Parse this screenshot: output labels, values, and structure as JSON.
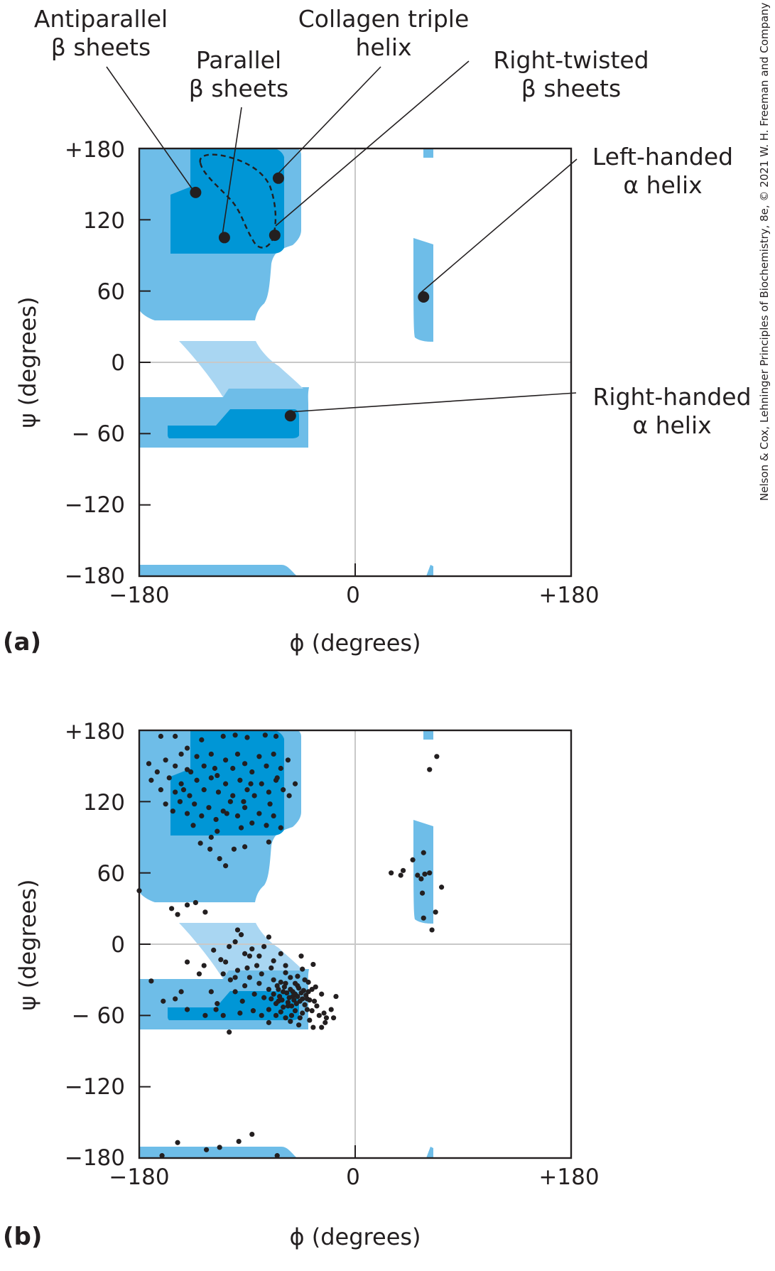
{
  "credit": "Nelson & Cox, Lehninger Principles of Biochemistry, 8e, © 2021 W. H. Freeman and Company",
  "colors": {
    "allowed": "#6ebde8",
    "favorable": "#0096d6",
    "bridge": "#a9d6f2",
    "frame": "#231f20",
    "gridline": "#c8c8c8",
    "point": "#231f20"
  },
  "chart_data": [
    {
      "panel": "(a)",
      "type": "scatter",
      "xlabel": "ϕ (degrees)",
      "ylabel": "ψ (degrees)",
      "xlim": [
        -180,
        180
      ],
      "ylim": [
        -180,
        180
      ],
      "x_ticks": [
        "−180",
        "0",
        "+180"
      ],
      "y_ticks": [
        "+180",
        "120",
        "60",
        "0",
        "− 60",
        "−120",
        "−180"
      ],
      "annotations": [
        {
          "label_lines": [
            "Antiparallel",
            "β sheets"
          ],
          "phi": -133,
          "psi": 143
        },
        {
          "label_lines": [
            "Parallel",
            "β sheets"
          ],
          "phi": -109,
          "psi": 105
        },
        {
          "label_lines": [
            "Collagen triple",
            "helix"
          ],
          "phi": -64,
          "psi": 155
        },
        {
          "label_lines": [
            "Right-twisted",
            "β sheets"
          ],
          "phi": -67,
          "psi": 107
        },
        {
          "label_lines": [
            "Left-handed",
            "α helix"
          ],
          "phi": 57,
          "psi": 55
        },
        {
          "label_lines": [
            "Right-handed",
            "α helix"
          ],
          "phi": -54,
          "psi": -45
        }
      ]
    },
    {
      "panel": "(b)",
      "type": "scatter",
      "xlabel": "ϕ (degrees)",
      "ylabel": "ψ (degrees)",
      "xlim": [
        -180,
        180
      ],
      "ylim": [
        -180,
        180
      ],
      "x_ticks": [
        "−180",
        "0",
        "+180"
      ],
      "y_ticks": [
        "+180",
        "120",
        "60",
        "0",
        "− 60",
        "−120",
        "−180"
      ],
      "points": [
        [
          -162,
          175
        ],
        [
          -150,
          175
        ],
        [
          -140,
          165
        ],
        [
          -128,
          172
        ],
        [
          -110,
          175
        ],
        [
          -100,
          176
        ],
        [
          -90,
          174
        ],
        [
          -75,
          176
        ],
        [
          -66,
          175
        ],
        [
          -172,
          152
        ],
        [
          -165,
          145
        ],
        [
          -158,
          155
        ],
        [
          -150,
          150
        ],
        [
          -145,
          160
        ],
        [
          -140,
          147
        ],
        [
          -132,
          158
        ],
        [
          -126,
          150
        ],
        [
          -120,
          160
        ],
        [
          -115,
          142
        ],
        [
          -108,
          155
        ],
        [
          -102,
          148
        ],
        [
          -98,
          160
        ],
        [
          -92,
          152
        ],
        [
          -86,
          145
        ],
        [
          -80,
          158
        ],
        [
          -74,
          150
        ],
        [
          -68,
          160
        ],
        [
          -62,
          148
        ],
        [
          -56,
          155
        ],
        [
          -170,
          138
        ],
        [
          -162,
          130
        ],
        [
          -155,
          140
        ],
        [
          -150,
          128
        ],
        [
          -145,
          135
        ],
        [
          -138,
          125
        ],
        [
          -132,
          138
        ],
        [
          -126,
          130
        ],
        [
          -120,
          140
        ],
        [
          -114,
          128
        ],
        [
          -108,
          135
        ],
        [
          -102,
          125
        ],
        [
          -96,
          138
        ],
        [
          -90,
          130
        ],
        [
          -84,
          125
        ],
        [
          -78,
          135
        ],
        [
          -72,
          128
        ],
        [
          -66,
          138
        ],
        [
          -60,
          130
        ],
        [
          -55,
          125
        ],
        [
          -65,
          140
        ],
        [
          -158,
          118
        ],
        [
          -152,
          112
        ],
        [
          -146,
          120
        ],
        [
          -140,
          110
        ],
        [
          -134,
          118
        ],
        [
          -128,
          108
        ],
        [
          -122,
          115
        ],
        [
          -116,
          105
        ],
        [
          -110,
          112
        ],
        [
          -104,
          120
        ],
        [
          -98,
          108
        ],
        [
          -92,
          115
        ],
        [
          -86,
          102
        ],
        [
          -80,
          110
        ],
        [
          -74,
          100
        ],
        [
          -68,
          108
        ],
        [
          -62,
          98
        ],
        [
          -50,
          135
        ],
        [
          -135,
          100
        ],
        [
          -115,
          95
        ],
        [
          -95,
          98
        ],
        [
          -120,
          90
        ],
        [
          -107,
          110
        ],
        [
          -143,
          130
        ],
        [
          -137,
          145
        ],
        [
          -117,
          148
        ],
        [
          -93,
          120
        ],
        [
          -87,
          135
        ],
        [
          -71,
          118
        ],
        [
          -129,
          85
        ],
        [
          -121,
          80
        ],
        [
          -113,
          72
        ],
        [
          -108,
          66
        ],
        [
          -101,
          80
        ],
        [
          -92,
          82
        ],
        [
          -72,
          86
        ],
        [
          -180,
          45
        ],
        [
          -153,
          30
        ],
        [
          -148,
          25
        ],
        [
          -140,
          33
        ],
        [
          -133,
          35
        ],
        [
          -125,
          27
        ],
        [
          -150,
          -46
        ],
        [
          -160,
          -48
        ],
        [
          -170,
          -31
        ],
        [
          -145,
          -40
        ],
        [
          -140,
          -55
        ],
        [
          -125,
          -60
        ],
        [
          -115,
          -50
        ],
        [
          -105,
          -74
        ],
        [
          -140,
          -15
        ],
        [
          -126,
          -18
        ],
        [
          -118,
          -5
        ],
        [
          -112,
          -13
        ],
        [
          -105,
          -2
        ],
        [
          -100,
          2
        ],
        [
          -95,
          8
        ],
        [
          -98,
          12
        ],
        [
          -92,
          -8
        ],
        [
          -86,
          -4
        ],
        [
          -80,
          -10
        ],
        [
          -76,
          -2
        ],
        [
          -72,
          6
        ],
        [
          -68,
          -14
        ],
        [
          -62,
          -8
        ],
        [
          -58,
          -18
        ],
        [
          -110,
          -25
        ],
        [
          -104,
          -30
        ],
        [
          -98,
          -22
        ],
        [
          -92,
          -35
        ],
        [
          -88,
          -28
        ],
        [
          -84,
          -42
        ],
        [
          -80,
          -33
        ],
        [
          -76,
          -45
        ],
        [
          -72,
          -38
        ],
        [
          -68,
          -30
        ],
        [
          -64,
          -48
        ],
        [
          -60,
          -40
        ],
        [
          -56,
          -52
        ],
        [
          -52,
          -44
        ],
        [
          -48,
          -35
        ],
        [
          -44,
          -58
        ],
        [
          -40,
          -46
        ],
        [
          -36,
          -38
        ],
        [
          -32,
          -52
        ],
        [
          -28,
          -42
        ],
        [
          -72,
          -55
        ],
        [
          -66,
          -60
        ],
        [
          -62,
          -32
        ],
        [
          -58,
          -62
        ],
        [
          -54,
          -28
        ],
        [
          -50,
          -56
        ],
        [
          -46,
          -62
        ],
        [
          -42,
          -30
        ],
        [
          -38,
          -64
        ],
        [
          -34,
          -48
        ],
        [
          -30,
          -60
        ],
        [
          -26,
          -58
        ],
        [
          -70,
          -46
        ],
        [
          -68,
          -42
        ],
        [
          -66,
          -50
        ],
        [
          -64,
          -38
        ],
        [
          -63,
          -44
        ],
        [
          -61,
          -47
        ],
        [
          -60,
          -53
        ],
        [
          -59,
          -36
        ],
        [
          -57,
          -41
        ],
        [
          -56,
          -49
        ],
        [
          -55,
          -45
        ],
        [
          -54,
          -38
        ],
        [
          -53,
          -52
        ],
        [
          -52,
          -40
        ],
        [
          -51,
          -47
        ],
        [
          -50,
          -42
        ],
        [
          -49,
          -50
        ],
        [
          -48,
          -44
        ],
        [
          -47,
          -37
        ],
        [
          -46,
          -48
        ],
        [
          -45,
          -41
        ],
        [
          -44,
          -46
        ],
        [
          -43,
          -39
        ],
        [
          -42,
          -51
        ],
        [
          -41,
          -43
        ],
        [
          -40,
          -55
        ],
        [
          -39,
          -40
        ],
        [
          -38,
          -47
        ],
        [
          -65,
          -35
        ],
        [
          -62,
          -57
        ],
        [
          -58,
          -33
        ],
        [
          -53,
          -60
        ],
        [
          -48,
          -27
        ],
        [
          -36,
          -56
        ],
        [
          -58,
          -24
        ],
        [
          -50,
          -33
        ],
        [
          -44,
          -21
        ],
        [
          -39,
          -32
        ],
        [
          -33,
          -36
        ],
        [
          -54,
          -65
        ],
        [
          -47,
          -68
        ],
        [
          -24,
          -62
        ],
        [
          -20,
          -55
        ],
        [
          -16,
          -44
        ],
        [
          -85,
          -56
        ],
        [
          -94,
          -48
        ],
        [
          -100,
          -40
        ],
        [
          -108,
          -15
        ],
        [
          -130,
          -25
        ],
        [
          -100,
          -28
        ],
        [
          -90,
          -20
        ],
        [
          -82,
          -18
        ],
        [
          -96,
          -58
        ],
        [
          -78,
          -60
        ],
        [
          -72,
          -66
        ],
        [
          -120,
          -40
        ],
        [
          -116,
          -55
        ],
        [
          -110,
          -60
        ],
        [
          -45,
          -10
        ],
        [
          -35,
          -17
        ],
        [
          -18,
          -62
        ],
        [
          -28,
          -70
        ],
        [
          -25,
          -66
        ],
        [
          -88,
          -10
        ],
        [
          -78,
          -25
        ],
        [
          -70,
          -20
        ],
        [
          -35,
          -70
        ],
        [
          -148,
          -167
        ],
        [
          -161,
          -178
        ],
        [
          -113,
          -171
        ],
        [
          -97,
          -166
        ],
        [
          -86,
          -160
        ],
        [
          -124,
          -173
        ],
        [
          -65,
          -178
        ],
        [
          62,
          147
        ],
        [
          68,
          158
        ],
        [
          30,
          60
        ],
        [
          40,
          62
        ],
        [
          38,
          58
        ],
        [
          52,
          58
        ],
        [
          58,
          59
        ],
        [
          62,
          60
        ],
        [
          48,
          71
        ],
        [
          57,
          77
        ],
        [
          67,
          27
        ],
        [
          57,
          22
        ],
        [
          64,
          12
        ],
        [
          72,
          48
        ],
        [
          56,
          43
        ],
        [
          55,
          55
        ]
      ]
    }
  ],
  "panels": {
    "a": {
      "letter": "(a)",
      "x_axis_label": "ϕ (degrees)",
      "y_axis_label": "ψ (degrees)",
      "x_ticks": [
        "−180",
        "0",
        "+180"
      ],
      "y_ticks": [
        "+180",
        "120",
        "60",
        "0",
        "− 60",
        "−120",
        "−180"
      ],
      "labels": {
        "antiparallel": [
          "Antiparallel",
          "β sheets"
        ],
        "parallel": [
          "Parallel",
          "β sheets"
        ],
        "collagen": [
          "Collagen triple",
          "helix"
        ],
        "right_twisted": [
          "Right-twisted",
          "β sheets"
        ],
        "left_handed": [
          "Left-handed",
          "α helix"
        ],
        "right_handed": [
          "Right-handed",
          "α helix"
        ]
      }
    },
    "b": {
      "letter": "(b)",
      "x_axis_label": "ϕ (degrees)",
      "y_axis_label": "ψ (degrees)",
      "x_ticks": [
        "−180",
        "0",
        "+180"
      ],
      "y_ticks": [
        "+180",
        "120",
        "60",
        "0",
        "− 60",
        "−120",
        "−180"
      ]
    }
  }
}
